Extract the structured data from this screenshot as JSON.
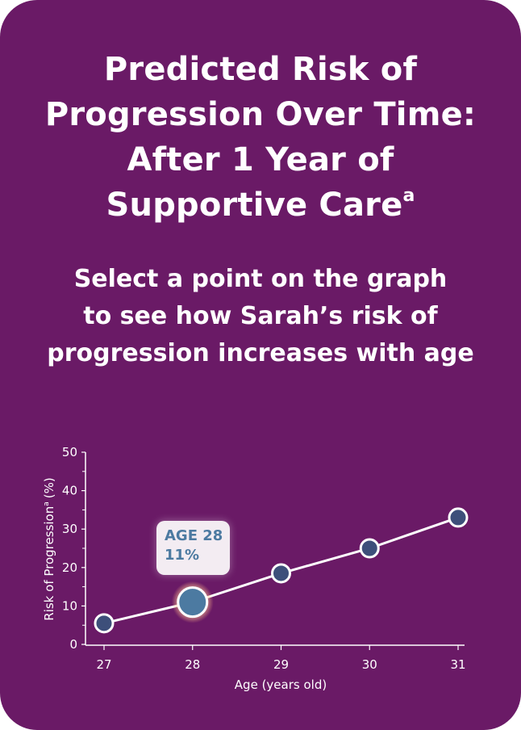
{
  "header": {
    "title_line1": "Predicted Risk of",
    "title_line2": "Progression Over Time:",
    "title_line3": "After 1 Year of",
    "title_line4": "Supportive Care",
    "title_footnote": "a",
    "subtitle_line1": "Select a point on the graph",
    "subtitle_line2": "to see how Sarah’s risk of",
    "subtitle_line3": "progression increases with age"
  },
  "tooltip": {
    "line1": "AGE 28",
    "line2": "11%"
  },
  "colors": {
    "background": "#6a1a66",
    "point_fill": "#3d4f7a",
    "selected_point_fill": "#4c7aa1",
    "line": "#ffffff",
    "tooltip_bg": "#f3ecf2",
    "tooltip_text": "#4c7aa1"
  },
  "chart_data": {
    "type": "line",
    "x": [
      27,
      28,
      29,
      30,
      31
    ],
    "series": [
      {
        "values": [
          5.5,
          11,
          18.5,
          25,
          33
        ]
      }
    ],
    "selected_index": 1,
    "xlabel": "Age (years old)",
    "ylabel": "Risk of Progression",
    "ylabel_footnote": "a",
    "ylabel_unit": "(%)",
    "x_ticks": [
      "27",
      "28",
      "29",
      "30",
      "31"
    ],
    "y_ticks": [
      "0",
      "10",
      "20",
      "30",
      "40",
      "50"
    ],
    "xlim": [
      27,
      31
    ],
    "ylim": [
      0,
      50
    ],
    "grid": false
  }
}
